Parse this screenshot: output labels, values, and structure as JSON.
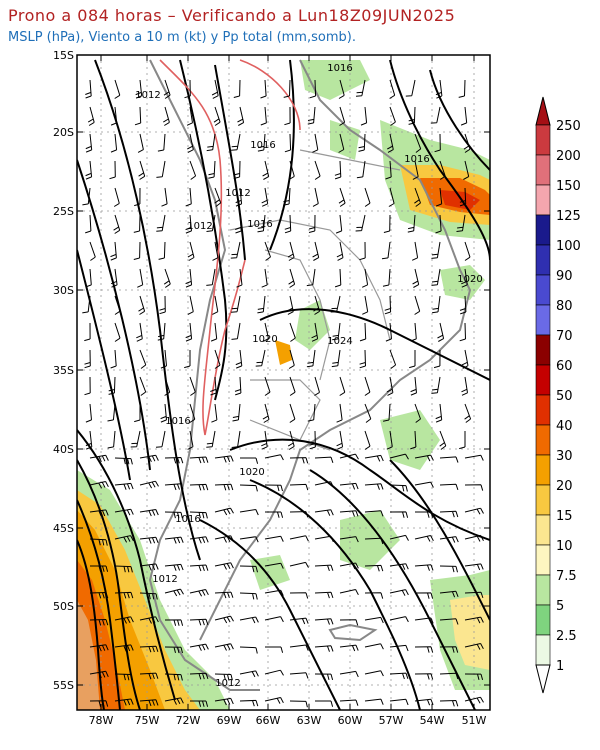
{
  "header": {
    "title": "Prono a 084 horas – Verificando a Lun18Z09JUN2025",
    "subtitle": "MSLP (hPa), Viento a 10 m (kt) y Pp total (mm,somb)."
  },
  "map": {
    "lat_labels": [
      "15S",
      "20S",
      "25S",
      "30S",
      "35S",
      "40S",
      "45S",
      "50S",
      "55S"
    ],
    "lon_labels": [
      "78W",
      "75W",
      "72W",
      "69W",
      "66W",
      "63W",
      "60W",
      "57W",
      "54W",
      "51W"
    ],
    "isobar_labels": [
      "1016",
      "1012",
      "1016",
      "1012",
      "1016",
      "1012",
      "1016",
      "1016",
      "1020",
      "1020",
      "1024",
      "1016",
      "1020",
      "1016",
      "1012",
      "1012"
    ]
  },
  "colorbar": {
    "levels": [
      "250",
      "200",
      "150",
      "125",
      "100",
      "90",
      "80",
      "70",
      "60",
      "50",
      "40",
      "30",
      "20",
      "15",
      "10",
      "7.5",
      "5",
      "2.5",
      "1"
    ],
    "colors": [
      "#a50f15",
      "#cb3a3f",
      "#e0707a",
      "#f4a6ae",
      "#1a1a8c",
      "#2f2fb0",
      "#4a4ad0",
      "#6a6ae6",
      "#8b0000",
      "#c40000",
      "#e03000",
      "#f06a00",
      "#f4a000",
      "#f8c840",
      "#fbe690",
      "#fdf6c0",
      "#b8e6a0",
      "#7fd47f",
      "#ecf9e4"
    ]
  }
}
